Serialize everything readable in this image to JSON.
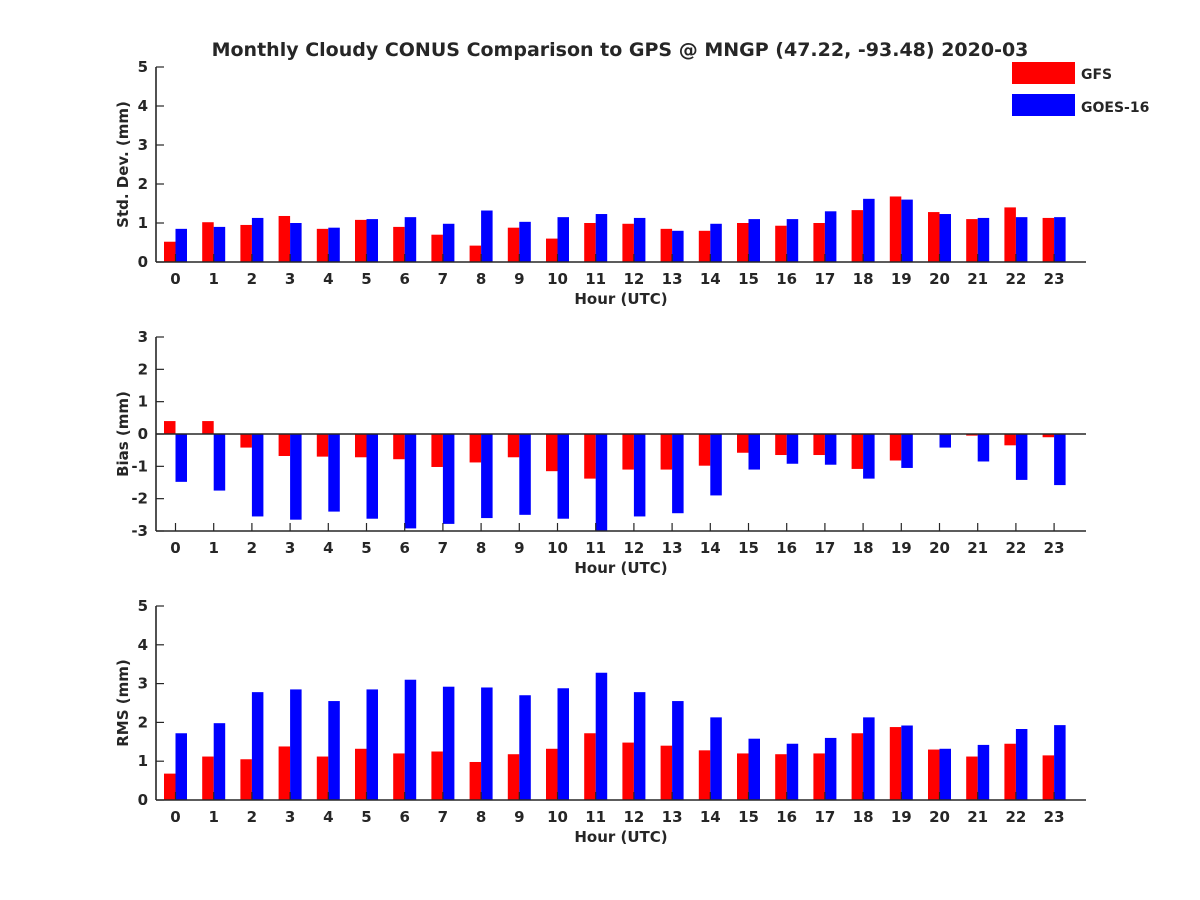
{
  "title": "Monthly Cloudy CONUS Comparison to GPS @ MNGP (47.22, -93.48) 2020-03",
  "legend": {
    "placement": "top-right",
    "items": [
      {
        "label": "GFS",
        "color": "#ff0000"
      },
      {
        "label": "GOES-16",
        "color": "#0000ff"
      }
    ]
  },
  "colors": {
    "GFS": "#ff0000",
    "GOES-16": "#0000ff",
    "axis": "#262626"
  },
  "chart_data": [
    {
      "type": "bar",
      "xlabel": "Hour (UTC)",
      "ylabel": "Std. Dev. (mm)",
      "ylim": [
        0,
        5
      ],
      "yticks": [
        0,
        1,
        2,
        3,
        4,
        5
      ],
      "categories": [
        "0",
        "1",
        "2",
        "3",
        "4",
        "5",
        "6",
        "7",
        "8",
        "9",
        "10",
        "11",
        "12",
        "13",
        "14",
        "15",
        "16",
        "17",
        "18",
        "19",
        "20",
        "21",
        "22",
        "23"
      ],
      "series": [
        {
          "name": "GFS",
          "values": [
            0.52,
            1.02,
            0.95,
            1.18,
            0.85,
            1.08,
            0.9,
            0.7,
            0.42,
            0.88,
            0.6,
            1.0,
            0.98,
            0.85,
            0.8,
            1.0,
            0.93,
            1.0,
            1.33,
            1.68,
            1.28,
            1.1,
            1.4,
            1.13
          ]
        },
        {
          "name": "GOES-16",
          "values": [
            0.85,
            0.9,
            1.13,
            1.0,
            0.88,
            1.1,
            1.15,
            0.98,
            1.32,
            1.03,
            1.15,
            1.23,
            1.13,
            0.8,
            0.98,
            1.1,
            1.1,
            1.3,
            1.62,
            1.6,
            1.23,
            1.13,
            1.15,
            1.15
          ]
        }
      ]
    },
    {
      "type": "bar",
      "xlabel": "Hour (UTC)",
      "ylabel": "Bias (mm)",
      "ylim": [
        -3,
        3
      ],
      "yticks": [
        -3,
        -2,
        -1,
        0,
        1,
        2,
        3
      ],
      "zero_line": true,
      "categories": [
        "0",
        "1",
        "2",
        "3",
        "4",
        "5",
        "6",
        "7",
        "8",
        "9",
        "10",
        "11",
        "12",
        "13",
        "14",
        "15",
        "16",
        "17",
        "18",
        "19",
        "20",
        "21",
        "22",
        "23"
      ],
      "series": [
        {
          "name": "GFS",
          "values": [
            0.4,
            0.4,
            -0.42,
            -0.68,
            -0.7,
            -0.72,
            -0.78,
            -1.02,
            -0.88,
            -0.72,
            -1.15,
            -1.38,
            -1.1,
            -1.1,
            -0.98,
            -0.58,
            -0.65,
            -0.65,
            -1.08,
            -0.82,
            0.0,
            -0.05,
            -0.35,
            -0.1
          ]
        },
        {
          "name": "GOES-16",
          "values": [
            -1.48,
            -1.75,
            -2.55,
            -2.65,
            -2.4,
            -2.62,
            -2.92,
            -2.78,
            -2.6,
            -2.5,
            -2.62,
            -3.0,
            -2.55,
            -2.45,
            -1.9,
            -1.1,
            -0.92,
            -0.95,
            -1.38,
            -1.05,
            -0.42,
            -0.85,
            -1.42,
            -1.58
          ]
        }
      ]
    },
    {
      "type": "bar",
      "xlabel": "Hour (UTC)",
      "ylabel": "RMS (mm)",
      "ylim": [
        0,
        5
      ],
      "yticks": [
        0,
        1,
        2,
        3,
        4,
        5
      ],
      "categories": [
        "0",
        "1",
        "2",
        "3",
        "4",
        "5",
        "6",
        "7",
        "8",
        "9",
        "10",
        "11",
        "12",
        "13",
        "14",
        "15",
        "16",
        "17",
        "18",
        "19",
        "20",
        "21",
        "22",
        "23"
      ],
      "series": [
        {
          "name": "GFS",
          "values": [
            0.68,
            1.12,
            1.05,
            1.38,
            1.12,
            1.32,
            1.2,
            1.25,
            0.98,
            1.18,
            1.32,
            1.72,
            1.48,
            1.4,
            1.28,
            1.2,
            1.18,
            1.2,
            1.72,
            1.88,
            1.3,
            1.12,
            1.45,
            1.15
          ]
        },
        {
          "name": "GOES-16",
          "values": [
            1.72,
            1.98,
            2.78,
            2.85,
            2.55,
            2.85,
            3.1,
            2.92,
            2.9,
            2.7,
            2.88,
            3.28,
            2.78,
            2.55,
            2.13,
            1.58,
            1.45,
            1.6,
            2.13,
            1.92,
            1.32,
            1.42,
            1.83,
            1.93
          ]
        }
      ]
    }
  ]
}
